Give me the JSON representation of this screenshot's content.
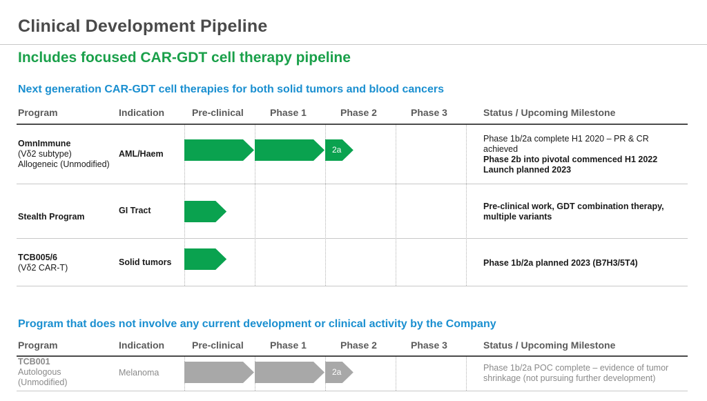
{
  "page": {
    "title": "Clinical Development Pipeline",
    "subtitle": "Includes focused CAR-GDT cell therapy pipeline"
  },
  "colors": {
    "green": "#0aa24f",
    "gray": "#a8a8a8",
    "blue_heading": "#1a8fd0",
    "green_heading": "#1aa04a"
  },
  "columns": [
    "Program",
    "Indication",
    "Pre-clinical",
    "Phase 1",
    "Phase 2",
    "Phase 3",
    "Status / Upcoming Milestone"
  ],
  "section1": {
    "heading": "Next generation CAR-GDT cell therapies for both solid tumors and blood cancers",
    "rows": [
      {
        "program_lines": [
          "OmnImmune",
          "(Vδ2 subtype)",
          "Allogeneic (Unmodified)"
        ],
        "indication": "AML/Haem",
        "stage_reached": 2.4,
        "phase2_label": "2a",
        "status_lines": [
          {
            "text": "Phase 1b/2a complete H1 2020 – PR & CR",
            "bold": false
          },
          {
            "text": "achieved",
            "bold": false
          },
          {
            "text": "Phase 2b into pivotal commenced H1 2022",
            "bold": true
          },
          {
            "text": "Launch planned 2023",
            "bold": true
          }
        ]
      },
      {
        "program_lines": [
          "Stealth Program"
        ],
        "indication": "GI Tract",
        "stage_reached": 0.6,
        "status_lines": [
          {
            "text": "Pre-clinical work, GDT combination therapy,",
            "bold": true
          },
          {
            "text": "multiple variants",
            "bold": true
          }
        ]
      },
      {
        "program_lines": [
          "TCB005/6",
          "(Vδ2 CAR-T)"
        ],
        "indication": "Solid tumors",
        "stage_reached": 0.6,
        "status_lines": [
          {
            "text": "Phase 1b/2a planned 2023 (B7H3/5T4)",
            "bold": true
          }
        ]
      }
    ]
  },
  "section2": {
    "heading": "Program that does not involve any current development or clinical activity by the Company",
    "rows": [
      {
        "program_lines": [
          "TCB001",
          "Autologous",
          "(Unmodified)"
        ],
        "indication": "Melanoma",
        "stage_reached": 2.4,
        "phase2_label": "2a",
        "status_lines": [
          {
            "text": "Phase 1b/2a POC complete – evidence of tumor",
            "bold": false
          },
          {
            "text": "shrinkage (not pursuing further development)",
            "bold": false
          }
        ]
      }
    ]
  }
}
